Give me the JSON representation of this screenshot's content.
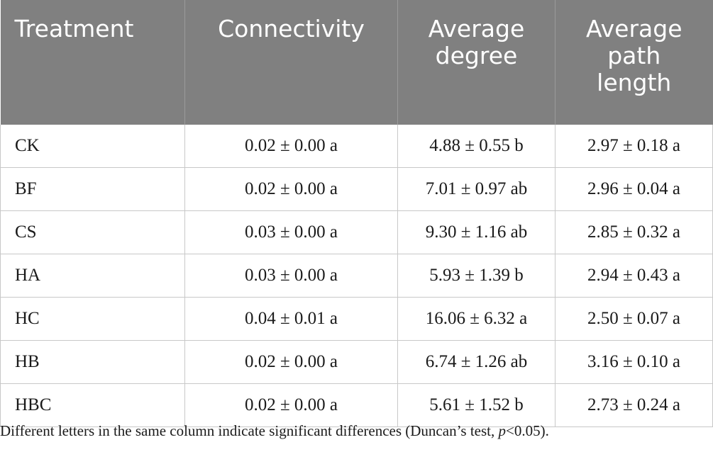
{
  "table": {
    "headers": [
      [
        "Treatment"
      ],
      [
        "Connectivity"
      ],
      [
        "Average",
        "degree"
      ],
      [
        "Average",
        "path",
        "length"
      ]
    ],
    "rows": [
      [
        "CK",
        "0.02 ± 0.00 a",
        "4.88 ± 0.55 b",
        "2.97 ± 0.18 a"
      ],
      [
        "BF",
        "0.02 ± 0.00 a",
        "7.01 ± 0.97 ab",
        "2.96 ± 0.04 a"
      ],
      [
        "CS",
        "0.03 ± 0.00 a",
        "9.30 ± 1.16 ab",
        "2.85 ± 0.32 a"
      ],
      [
        "HA",
        "0.03 ± 0.00 a",
        "5.93 ± 1.39 b",
        "2.94 ± 0.43 a"
      ],
      [
        "HC",
        "0.04 ± 0.01 a",
        "16.06 ± 6.32 a",
        "2.50 ± 0.07 a"
      ],
      [
        "HB",
        "0.02 ± 0.00 a",
        "6.74 ± 1.26 ab",
        "3.16 ± 0.10 a"
      ],
      [
        "HBC",
        "0.02 ± 0.00 a",
        "5.61 ± 1.52 b",
        "2.73 ± 0.24 a"
      ]
    ]
  },
  "footnote": {
    "text_before": "Different letters in the same column indicate significant differences (Duncan’s test, ",
    "italic": "p",
    "text_after": "<0.05)."
  },
  "colors": {
    "header_bg": "#808080",
    "header_text": "#ffffff",
    "grid": "#c8c8c8"
  }
}
